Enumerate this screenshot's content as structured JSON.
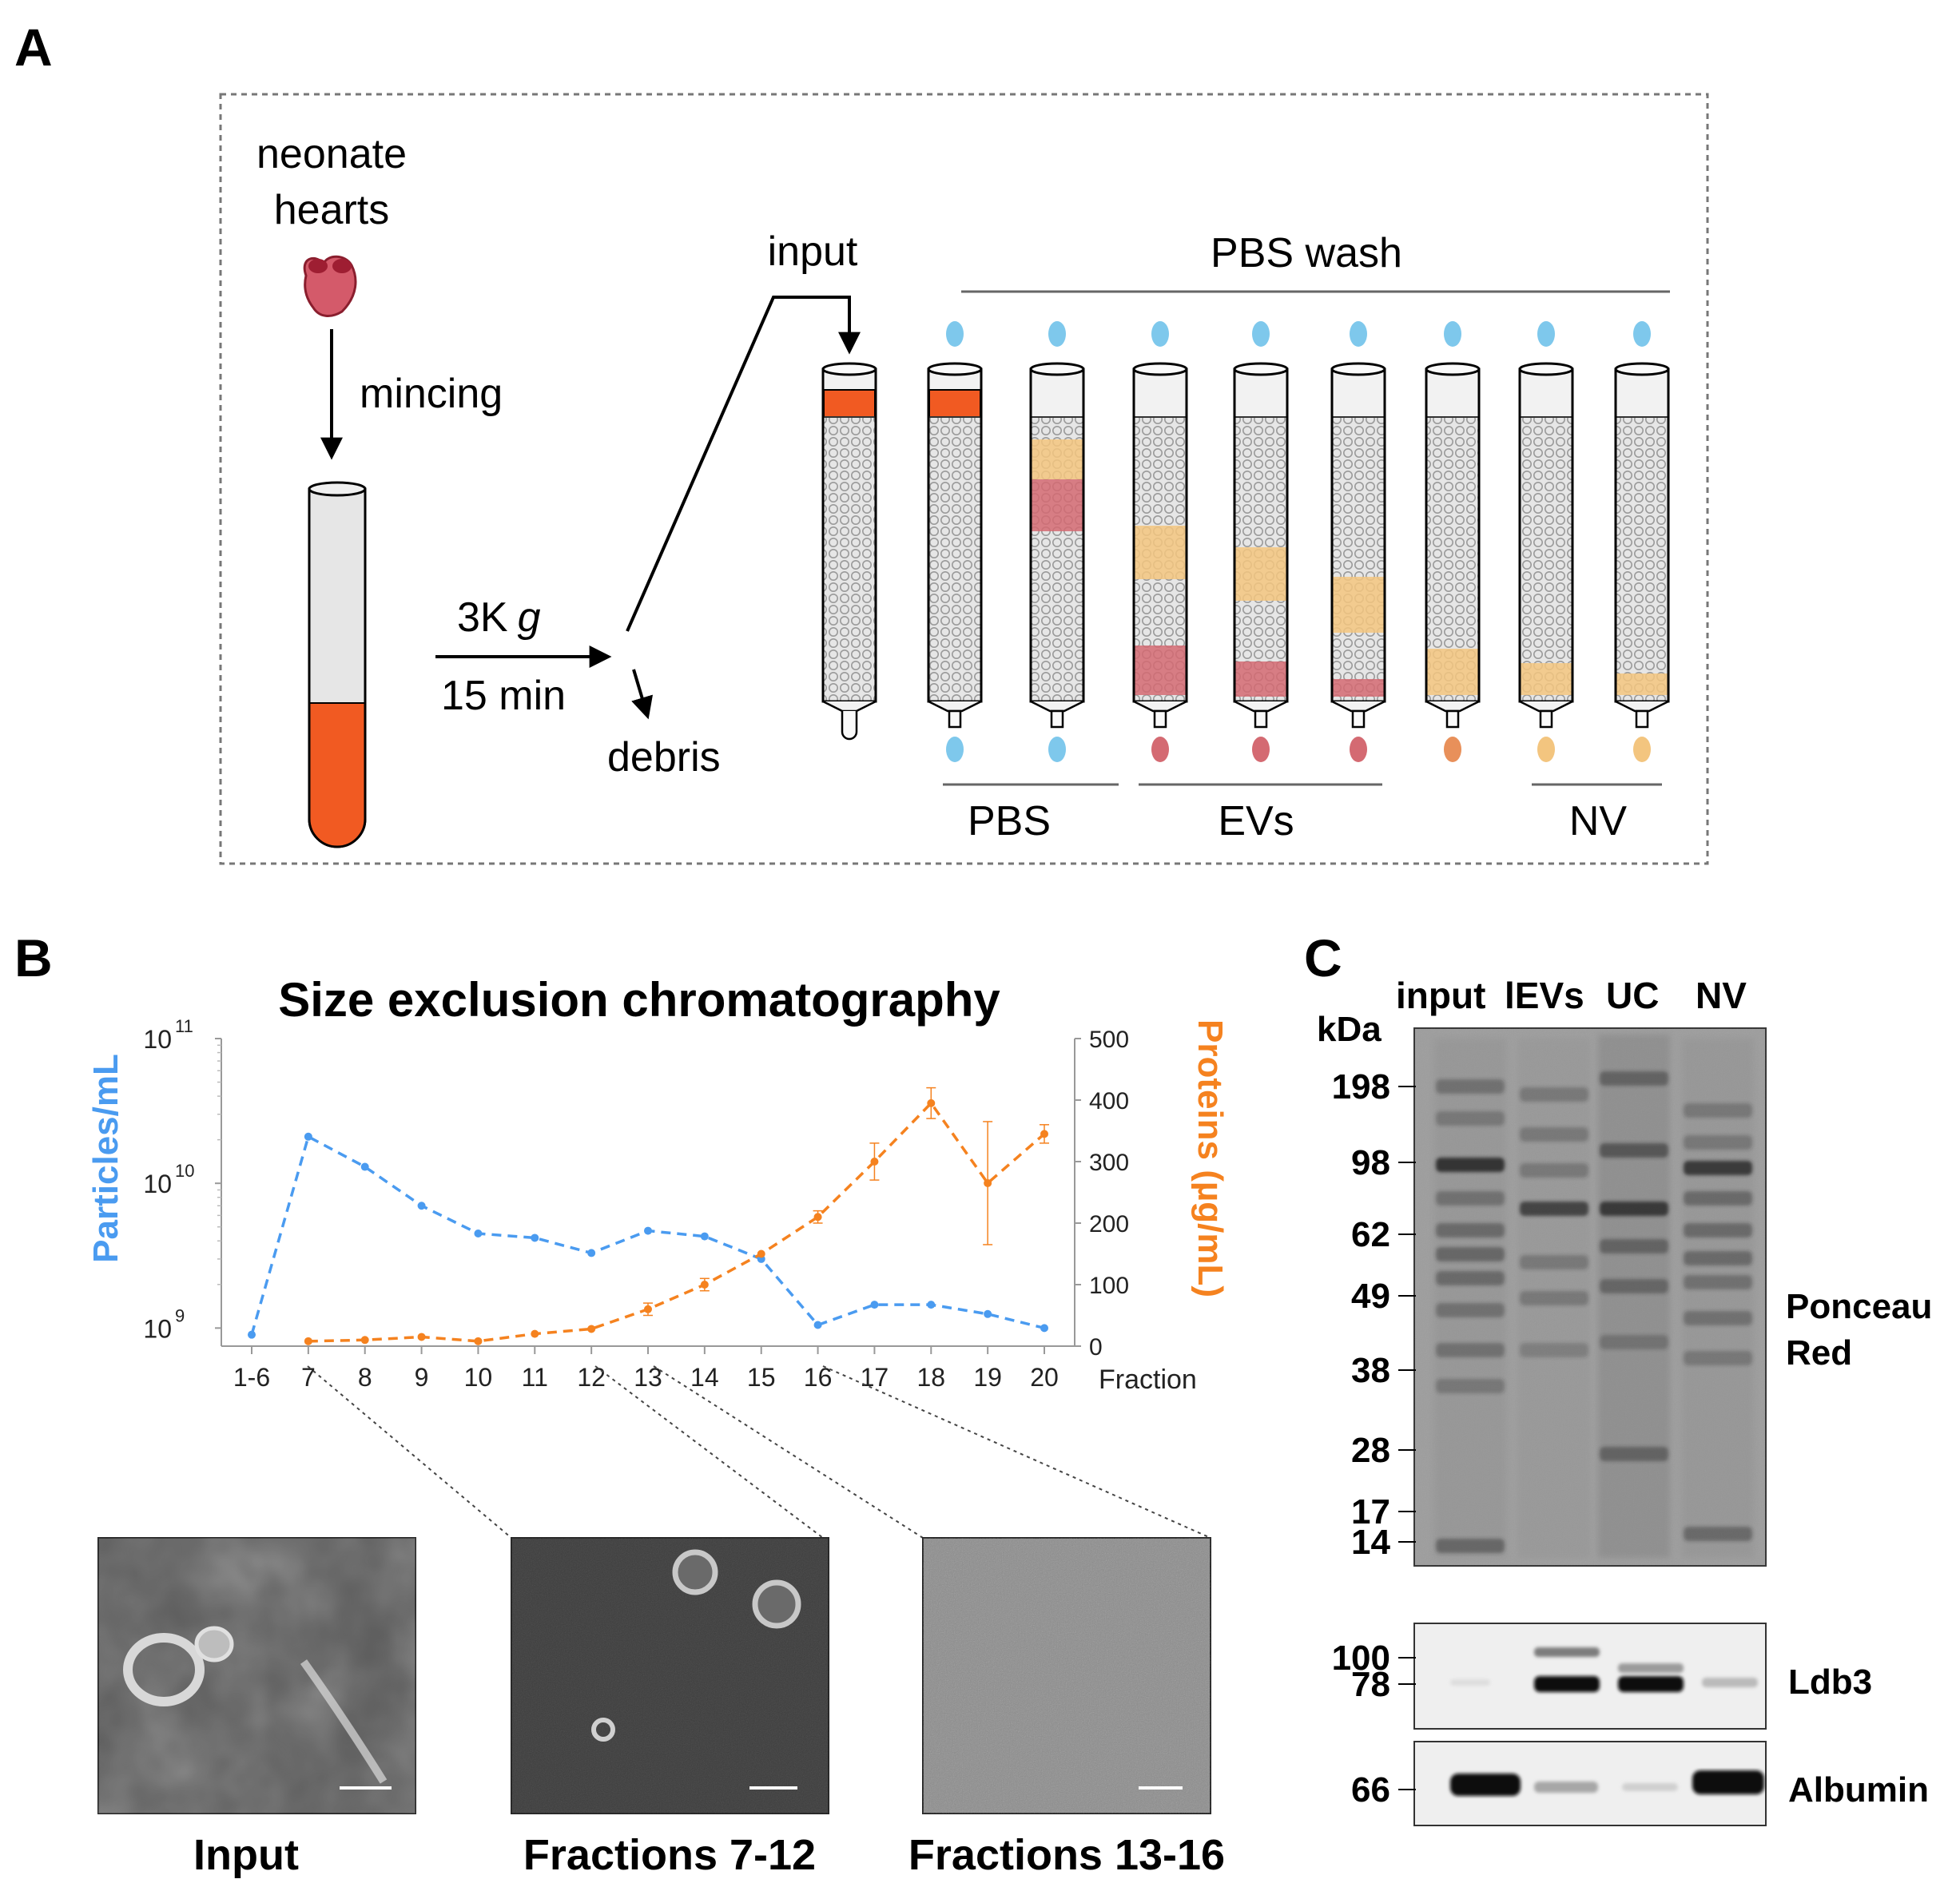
{
  "panel_a": {
    "letter": "A",
    "neonate": [
      "neonate",
      "hearts"
    ],
    "mincing": "mincing",
    "spin": "3K",
    "spin_g": "g",
    "spin_time": "15 min",
    "debris": "debris",
    "input": "input",
    "pbs_wash": "PBS wash",
    "groups": {
      "pbs": "PBS",
      "evs": "EVs",
      "nv": "NV"
    },
    "colors": {
      "sample": "#f15a22",
      "pbs_drop": "#7ec8ec",
      "ev_band": "#d46a72",
      "nv_band": "#f3c57f",
      "beads": "#e6e6e6"
    }
  },
  "panel_b": {
    "letter": "B",
    "chart_data": {
      "type": "line",
      "title": "Size exclusion chromatography",
      "xlabel": "Fraction",
      "categories": [
        "1-6",
        "7",
        "8",
        "9",
        "10",
        "11",
        "12",
        "13",
        "14",
        "15",
        "16",
        "17",
        "18",
        "19",
        "20"
      ],
      "series": [
        {
          "name": "Particles/mL",
          "axis": "left",
          "scale": "log",
          "color": "#4a9bf0",
          "values": [
            900000000.0,
            21000000000.0,
            13000000000.0,
            7000000000.0,
            4500000000.0,
            4200000000.0,
            3300000000.0,
            4700000000.0,
            4300000000.0,
            3000000000.0,
            1050000000.0,
            1450000000.0,
            1450000000.0,
            1250000000.0,
            1000000000.0
          ]
        },
        {
          "name": "Proteins (µg/mL)",
          "axis": "right",
          "scale": "linear",
          "color": "#f5821f",
          "values": [
            null,
            8,
            10,
            15,
            8,
            20,
            28,
            60,
            100,
            150,
            210,
            300,
            395,
            265,
            345
          ],
          "errors": [
            null,
            0,
            0,
            0,
            0,
            0,
            0,
            10,
            10,
            0,
            10,
            30,
            25,
            100,
            15
          ]
        }
      ],
      "left_axis": {
        "label": "Particles/mL",
        "ticks": [
          {
            "base": "10",
            "exp": "9"
          },
          {
            "base": "10",
            "exp": "10"
          },
          {
            "base": "10",
            "exp": "11"
          }
        ],
        "range": [
          750000000.0,
          100000000000.0
        ]
      },
      "right_axis": {
        "label": "Proteins (µg/mL)",
        "ticks": [
          "0",
          "100",
          "200",
          "300",
          "400",
          "500"
        ],
        "range": [
          0,
          500
        ]
      }
    },
    "micrographs": [
      {
        "caption": "Input",
        "tone": "#5a5a5a"
      },
      {
        "caption": "Fractions 7-12",
        "tone": "#3c3c3c"
      },
      {
        "caption": "Fractions 13-16",
        "tone": "#8c8c8c"
      }
    ]
  },
  "panel_c": {
    "letter": "C",
    "lanes": [
      "input",
      "lEVs",
      "UC",
      "NV"
    ],
    "kda": "kDa",
    "markers_top": [
      "198",
      "98",
      "62",
      "49",
      "38",
      "28",
      "17",
      "14"
    ],
    "markers_ldb3": [
      "100",
      "78"
    ],
    "markers_alb": [
      "66"
    ],
    "labels": {
      "ponceau": [
        "Ponceau",
        "Red"
      ],
      "ldb3": "Ldb3",
      "albumin": "Albumin"
    }
  }
}
